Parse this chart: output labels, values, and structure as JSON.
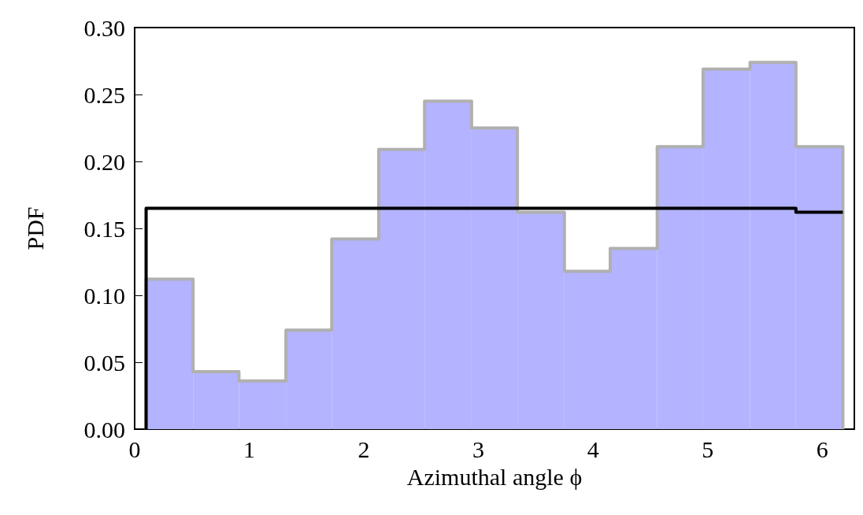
{
  "chart_data": {
    "type": "histogram",
    "xlabel": "Azimuthal angle ϕ",
    "ylabel": "PDF",
    "bins": [
      0.1,
      0.51,
      0.91,
      1.32,
      1.72,
      2.13,
      2.53,
      2.94,
      3.34,
      3.75,
      4.15,
      4.56,
      4.96,
      5.37,
      5.77,
      6.18
    ],
    "series": [
      {
        "color": "#b3b3ff",
        "values": [
          0.112,
          0.043,
          0.036,
          0.074,
          0.142,
          0.209,
          0.245,
          0.225,
          0.162,
          0.118,
          0.135,
          0.211,
          0.269,
          0.274,
          0.211
        ]
      },
      {
        "type": "step",
        "color": "#b0b0b0",
        "x": [
          0.1,
          0.1,
          0.51,
          0.91,
          1.32,
          1.72,
          2.13,
          2.53,
          2.94,
          3.34,
          3.75,
          4.15,
          4.56,
          4.96,
          5.37,
          5.77,
          6.18,
          6.18
        ],
        "values": [
          0,
          0.112,
          0.043,
          0.036,
          0.074,
          0.142,
          0.209,
          0.245,
          0.225,
          0.162,
          0.118,
          0.135,
          0.211,
          0.269,
          0.274,
          0.211,
          0.211,
          0
        ]
      },
      {
        "type": "step",
        "color": "#000000",
        "x": [
          0.1,
          0.1,
          5.77,
          6.18
        ],
        "values": [
          0,
          0.165,
          0.162,
          0.162
        ]
      }
    ],
    "xlim": [
      0,
      6.28
    ],
    "xticks": [
      0,
      1,
      2,
      3,
      4,
      5,
      6
    ],
    "ylim": [
      0,
      0.3
    ],
    "yticks": [
      {
        "value": 0,
        "label": "0.00"
      },
      {
        "value": 0.05,
        "label": "0.05"
      },
      {
        "value": 0.1,
        "label": "0.10"
      },
      {
        "value": 0.15,
        "label": "0.15"
      },
      {
        "value": 0.2,
        "label": "0.20"
      },
      {
        "value": 0.25,
        "label": "0.25"
      },
      {
        "value": 0.3,
        "label": "0.30"
      }
    ],
    "grid": false
  }
}
